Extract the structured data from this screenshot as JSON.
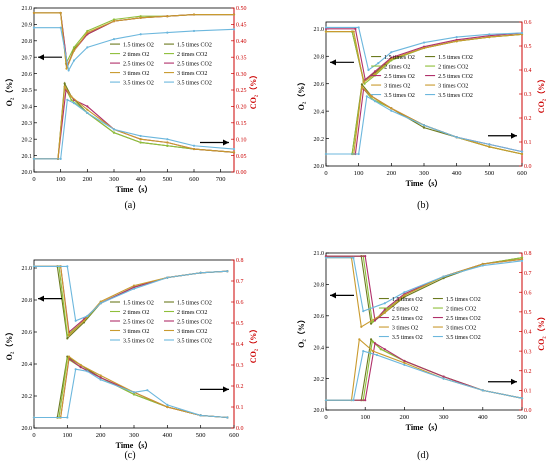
{
  "legend_labels": {
    "o2": [
      "1.5 times O2",
      "2 times O2",
      "2.5 times O2",
      "3 times O2",
      "3.5 times O2"
    ],
    "co2": [
      "1.5 times CO2",
      "2 times CO2",
      "2.5 times CO2",
      "3 times CO2",
      "3.5 times CO2"
    ]
  },
  "colors": {
    "series": [
      "#6b7a1e",
      "#8fbf3a",
      "#b0306a",
      "#c99a2e",
      "#6cb7dd"
    ],
    "co2_axis": "#cc0000",
    "o2_axis": "#000000"
  },
  "chart_data": [
    {
      "type": "line",
      "panel_label": "(a)",
      "xlabel": "Time（s）",
      "ylabel_left": "O₂（%）",
      "ylabel_right": "CO₂（%）",
      "xlim": [
        0,
        750
      ],
      "x_ticks": [
        0,
        100,
        200,
        300,
        400,
        500,
        600,
        700
      ],
      "ylim_left": [
        20.0,
        21.0
      ],
      "yticks_left": [
        20.0,
        20.1,
        20.2,
        20.3,
        20.4,
        20.5,
        20.6,
        20.7,
        20.8,
        20.9,
        21.0
      ],
      "ylim_right": [
        0.0,
        0.5
      ],
      "yticks_right": [
        0.0,
        0.05,
        0.1,
        0.15,
        0.2,
        0.25,
        0.3,
        0.35,
        0.4,
        0.45,
        0.5
      ],
      "grid": false,
      "legend_position": "center",
      "series_o2": [
        {
          "x": [
            0,
            100,
            125,
            150,
            200,
            300,
            400,
            500,
            600,
            750
          ],
          "y": [
            20.97,
            20.97,
            20.64,
            20.75,
            20.84,
            20.92,
            20.94,
            20.95,
            20.96,
            20.96
          ]
        },
        {
          "x": [
            0,
            100,
            120,
            150,
            200,
            300,
            400,
            500,
            600,
            750
          ],
          "y": [
            20.97,
            20.97,
            20.66,
            20.76,
            20.86,
            20.93,
            20.95,
            20.95,
            20.96,
            20.96
          ]
        },
        {
          "x": [
            0,
            100,
            125,
            150,
            200,
            300,
            400,
            500,
            600,
            750
          ],
          "y": [
            20.97,
            20.97,
            20.65,
            20.74,
            20.84,
            20.92,
            20.94,
            20.95,
            20.96,
            20.96
          ]
        },
        {
          "x": [
            0,
            100,
            122,
            150,
            200,
            300,
            400,
            500,
            600,
            750
          ],
          "y": [
            20.97,
            20.97,
            20.63,
            20.74,
            20.85,
            20.92,
            20.94,
            20.95,
            20.96,
            20.96
          ]
        },
        {
          "x": [
            0,
            100,
            130,
            150,
            200,
            300,
            400,
            500,
            600,
            750
          ],
          "y": [
            20.88,
            20.88,
            20.62,
            20.68,
            20.76,
            20.81,
            20.84,
            20.85,
            20.86,
            20.87
          ]
        }
      ],
      "series_co2": [
        {
          "x": [
            0,
            90,
            115,
            140,
            200,
            300,
            400,
            500,
            600,
            750
          ],
          "y": [
            0.04,
            0.04,
            0.27,
            0.23,
            0.18,
            0.12,
            0.09,
            0.08,
            0.07,
            0.06
          ]
        },
        {
          "x": [
            0,
            90,
            115,
            140,
            200,
            300,
            400,
            500,
            600,
            750
          ],
          "y": [
            0.04,
            0.04,
            0.26,
            0.22,
            0.18,
            0.12,
            0.09,
            0.08,
            0.07,
            0.06
          ]
        },
        {
          "x": [
            0,
            90,
            120,
            150,
            200,
            300,
            400,
            500,
            600,
            750
          ],
          "y": [
            0.04,
            0.04,
            0.25,
            0.22,
            0.2,
            0.13,
            0.1,
            0.09,
            0.07,
            0.06
          ]
        },
        {
          "x": [
            0,
            90,
            115,
            140,
            200,
            300,
            400,
            500,
            600,
            750
          ],
          "y": [
            0.04,
            0.04,
            0.26,
            0.23,
            0.19,
            0.13,
            0.1,
            0.09,
            0.07,
            0.06
          ]
        },
        {
          "x": [
            0,
            100,
            125,
            150,
            200,
            300,
            400,
            500,
            600,
            750
          ],
          "y": [
            0.04,
            0.04,
            0.22,
            0.21,
            0.18,
            0.13,
            0.11,
            0.1,
            0.08,
            0.07
          ]
        }
      ]
    },
    {
      "type": "line",
      "panel_label": "(b)",
      "xlabel": "Time（s）",
      "ylabel_left": "O₂（%）",
      "ylabel_right": "CO₂（%）",
      "xlim": [
        0,
        600
      ],
      "x_ticks": [
        0,
        100,
        200,
        300,
        400,
        500,
        600
      ],
      "ylim_left": [
        20.0,
        21.05
      ],
      "yticks_left": [
        20.0,
        20.2,
        20.4,
        20.6,
        20.8,
        21.0
      ],
      "ylim_right": [
        0.0,
        0.6
      ],
      "yticks_right": [
        0.0,
        0.1,
        0.2,
        0.3,
        0.4,
        0.5,
        0.6
      ],
      "grid": false,
      "legend_position": "center",
      "series_o2": [
        {
          "x": [
            0,
            80,
            115,
            150,
            200,
            300,
            400,
            500,
            600
          ],
          "y": [
            20.98,
            20.98,
            20.62,
            20.68,
            20.78,
            20.86,
            20.91,
            20.94,
            20.96
          ]
        },
        {
          "x": [
            0,
            80,
            118,
            150,
            200,
            300,
            400,
            500,
            600
          ],
          "y": [
            20.98,
            20.98,
            20.6,
            20.66,
            20.77,
            20.86,
            20.91,
            20.94,
            20.96
          ]
        },
        {
          "x": [
            0,
            90,
            120,
            150,
            200,
            300,
            400,
            500,
            600
          ],
          "y": [
            21.0,
            21.0,
            20.63,
            20.69,
            20.79,
            20.87,
            20.92,
            20.95,
            20.97
          ]
        },
        {
          "x": [
            0,
            85,
            115,
            150,
            200,
            300,
            400,
            500,
            600
          ],
          "y": [
            20.98,
            20.98,
            20.61,
            20.67,
            20.78,
            20.86,
            20.91,
            20.94,
            20.96
          ]
        },
        {
          "x": [
            0,
            100,
            130,
            160,
            200,
            300,
            400,
            500,
            600
          ],
          "y": [
            21.01,
            21.01,
            20.7,
            20.75,
            20.83,
            20.9,
            20.94,
            20.96,
            20.97
          ]
        }
      ],
      "series_co2": [
        {
          "x": [
            0,
            80,
            110,
            140,
            200,
            300,
            400,
            500,
            600
          ],
          "y": [
            0.05,
            0.05,
            0.34,
            0.29,
            0.24,
            0.16,
            0.12,
            0.08,
            0.05
          ]
        },
        {
          "x": [
            0,
            80,
            110,
            140,
            200,
            300,
            400,
            500,
            600
          ],
          "y": [
            0.05,
            0.05,
            0.33,
            0.28,
            0.24,
            0.17,
            0.12,
            0.08,
            0.05
          ]
        },
        {
          "x": [
            0,
            90,
            115,
            140,
            200,
            300,
            400,
            500,
            600
          ],
          "y": [
            0.05,
            0.05,
            0.32,
            0.29,
            0.24,
            0.17,
            0.12,
            0.09,
            0.06
          ]
        },
        {
          "x": [
            0,
            85,
            110,
            140,
            200,
            300,
            400,
            500,
            600
          ],
          "y": [
            0.05,
            0.05,
            0.33,
            0.29,
            0.24,
            0.17,
            0.12,
            0.08,
            0.05
          ]
        },
        {
          "x": [
            0,
            100,
            125,
            150,
            200,
            300,
            400,
            500,
            600
          ],
          "y": [
            0.05,
            0.05,
            0.29,
            0.27,
            0.23,
            0.17,
            0.12,
            0.09,
            0.06
          ]
        }
      ]
    },
    {
      "type": "line",
      "panel_label": "(c)",
      "xlabel": "Time（s）",
      "ylabel_left": "O₂（%）",
      "ylabel_right": "CO₂（%）",
      "xlim": [
        0,
        600
      ],
      "x_ticks": [
        0,
        100,
        200,
        300,
        400,
        500,
        600
      ],
      "ylim_left": [
        20.0,
        21.05
      ],
      "yticks_left": [
        20.0,
        20.2,
        20.4,
        20.6,
        20.8,
        21.0
      ],
      "ylim_right": [
        0.0,
        0.8
      ],
      "yticks_right": [
        0.0,
        0.1,
        0.2,
        0.3,
        0.4,
        0.5,
        0.6,
        0.7,
        0.8
      ],
      "grid": false,
      "legend_position": "center",
      "series_o2": [
        {
          "x": [
            0,
            70,
            100,
            150,
            200,
            300,
            400,
            500,
            580
          ],
          "y": [
            21.01,
            21.01,
            20.56,
            20.66,
            20.78,
            20.88,
            20.94,
            20.97,
            20.98
          ]
        },
        {
          "x": [
            0,
            75,
            100,
            150,
            200,
            300,
            400,
            500,
            580
          ],
          "y": [
            21.01,
            21.01,
            20.58,
            20.67,
            20.78,
            20.88,
            20.94,
            20.97,
            20.98
          ]
        },
        {
          "x": [
            0,
            80,
            105,
            150,
            200,
            300,
            400,
            500,
            580
          ],
          "y": [
            21.01,
            21.01,
            20.6,
            20.68,
            20.78,
            20.88,
            20.94,
            20.97,
            20.98
          ]
        },
        {
          "x": [
            0,
            80,
            105,
            150,
            200,
            300,
            400,
            500,
            580
          ],
          "y": [
            21.01,
            21.01,
            20.58,
            20.67,
            20.79,
            20.89,
            20.94,
            20.97,
            20.98
          ]
        },
        {
          "x": [
            0,
            100,
            125,
            160,
            200,
            300,
            400,
            500,
            580
          ],
          "y": [
            21.01,
            21.01,
            20.67,
            20.7,
            20.78,
            20.87,
            20.94,
            20.97,
            20.98
          ]
        }
      ],
      "series_co2": [
        {
          "x": [
            0,
            70,
            100,
            140,
            200,
            300,
            400,
            500,
            580
          ],
          "y": [
            0.05,
            0.05,
            0.34,
            0.3,
            0.24,
            0.16,
            0.1,
            0.06,
            0.05
          ]
        },
        {
          "x": [
            0,
            75,
            100,
            140,
            200,
            300,
            400,
            500,
            580
          ],
          "y": [
            0.05,
            0.05,
            0.33,
            0.29,
            0.24,
            0.16,
            0.1,
            0.06,
            0.05
          ]
        },
        {
          "x": [
            0,
            80,
            105,
            140,
            200,
            300,
            400,
            500,
            580
          ],
          "y": [
            0.05,
            0.05,
            0.33,
            0.29,
            0.24,
            0.17,
            0.1,
            0.06,
            0.05
          ]
        },
        {
          "x": [
            0,
            80,
            105,
            140,
            200,
            300,
            400,
            500,
            580
          ],
          "y": [
            0.05,
            0.05,
            0.34,
            0.3,
            0.25,
            0.17,
            0.1,
            0.06,
            0.05
          ]
        },
        {
          "x": [
            0,
            100,
            125,
            160,
            200,
            300,
            340,
            400,
            500,
            580
          ],
          "y": [
            0.05,
            0.05,
            0.28,
            0.27,
            0.23,
            0.17,
            0.18,
            0.11,
            0.06,
            0.05
          ]
        }
      ]
    },
    {
      "type": "line",
      "panel_label": "(d)",
      "xlabel": "Time（s）",
      "ylabel_left": "O₂（%）",
      "ylabel_right": "CO₂（%）",
      "xlim": [
        0,
        500
      ],
      "x_ticks": [
        0,
        100,
        200,
        300,
        400,
        500
      ],
      "ylim_left": [
        20.0,
        21.0
      ],
      "yticks_left": [
        20.0,
        20.2,
        20.4,
        20.6,
        20.8,
        21.0
      ],
      "ylim_right": [
        0.0,
        0.8
      ],
      "yticks_right": [
        0.0,
        0.1,
        0.2,
        0.3,
        0.4,
        0.5,
        0.6,
        0.7,
        0.8
      ],
      "grid": false,
      "legend_position": "center",
      "series_o2": [
        {
          "x": [
            0,
            90,
            115,
            150,
            200,
            300,
            400,
            500
          ],
          "y": [
            20.98,
            20.98,
            20.55,
            20.62,
            20.72,
            20.84,
            20.93,
            20.97
          ]
        },
        {
          "x": [
            0,
            95,
            118,
            150,
            200,
            300,
            400,
            500
          ],
          "y": [
            20.98,
            20.98,
            20.56,
            20.63,
            20.73,
            20.85,
            20.93,
            20.97
          ]
        },
        {
          "x": [
            0,
            100,
            125,
            150,
            200,
            300,
            400,
            500
          ],
          "y": [
            20.98,
            20.98,
            20.57,
            20.64,
            20.74,
            20.85,
            20.93,
            20.96
          ]
        },
        {
          "x": [
            0,
            65,
            90,
            150,
            200,
            300,
            400,
            500
          ],
          "y": [
            20.97,
            20.97,
            20.53,
            20.62,
            20.73,
            20.85,
            20.93,
            20.96
          ]
        },
        {
          "x": [
            0,
            70,
            95,
            150,
            200,
            300,
            400,
            500
          ],
          "y": [
            20.97,
            20.97,
            20.63,
            20.68,
            20.75,
            20.85,
            20.92,
            20.95
          ]
        }
      ],
      "series_co2": [
        {
          "x": [
            0,
            90,
            115,
            140,
            200,
            300,
            400,
            500
          ],
          "y": [
            0.05,
            0.05,
            0.36,
            0.31,
            0.25,
            0.17,
            0.1,
            0.06
          ]
        },
        {
          "x": [
            0,
            95,
            118,
            140,
            200,
            300,
            400,
            500
          ],
          "y": [
            0.05,
            0.05,
            0.35,
            0.31,
            0.25,
            0.17,
            0.1,
            0.06
          ]
        },
        {
          "x": [
            0,
            100,
            125,
            150,
            200,
            300,
            400,
            500
          ],
          "y": [
            0.05,
            0.05,
            0.34,
            0.31,
            0.25,
            0.17,
            0.1,
            0.06
          ]
        },
        {
          "x": [
            0,
            65,
            85,
            120,
            200,
            300,
            400,
            500
          ],
          "y": [
            0.05,
            0.05,
            0.36,
            0.3,
            0.24,
            0.16,
            0.1,
            0.06
          ]
        },
        {
          "x": [
            0,
            70,
            95,
            130,
            200,
            300,
            400,
            500
          ],
          "y": [
            0.05,
            0.05,
            0.3,
            0.28,
            0.23,
            0.16,
            0.1,
            0.06
          ]
        }
      ]
    }
  ]
}
